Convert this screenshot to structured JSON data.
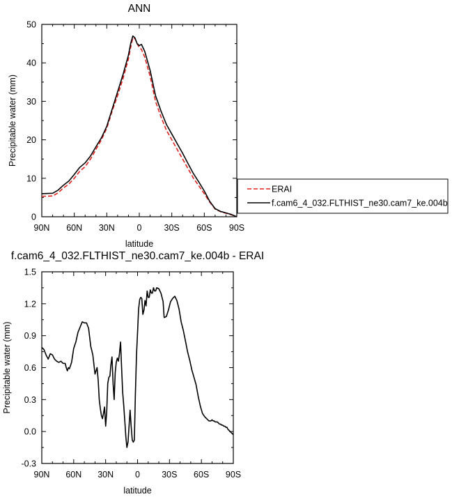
{
  "chart_data": [
    {
      "type": "line",
      "title": "ANN",
      "xlabel": "latitude",
      "ylabel": "Precipitable water (mm)",
      "xlim": [
        90,
        -90
      ],
      "ylim": [
        0,
        50
      ],
      "x_ticks": [
        90,
        60,
        30,
        0,
        -30,
        -60,
        -90
      ],
      "x_tick_labels": [
        "90N",
        "60N",
        "30N",
        "0",
        "30S",
        "60S",
        "90S"
      ],
      "y_ticks": [
        0,
        10,
        20,
        30,
        40,
        50
      ],
      "y_tick_labels": [
        "0",
        "10",
        "20",
        "30",
        "40",
        "50"
      ],
      "grid": false,
      "legend": {
        "placement": "right",
        "entries": [
          "ERAI",
          "f.cam6_4_032.FLTHIST_ne30.cam7_ke.004b"
        ]
      },
      "series": [
        {
          "name": "ERAI",
          "color": "#e0201b",
          "dash": "dashed",
          "x": [
            90,
            80,
            75,
            70,
            65,
            60,
            55,
            50,
            45,
            40,
            35,
            30,
            25,
            20,
            15,
            10,
            8,
            6,
            4,
            2,
            0,
            -2,
            -5,
            -10,
            -15,
            -20,
            -25,
            -30,
            -35,
            -40,
            -45,
            -50,
            -55,
            -60,
            -65,
            -70,
            -75,
            -80,
            -85,
            -90
          ],
          "y": [
            5.3,
            5.4,
            6.2,
            7.5,
            8.5,
            10.0,
            11.8,
            13.0,
            15.0,
            17.5,
            20.0,
            23.0,
            27.5,
            31.5,
            36.0,
            41.0,
            44.0,
            46.5,
            46.3,
            45.0,
            44.0,
            43.5,
            41.5,
            36.5,
            30.0,
            26.0,
            22.5,
            20.0,
            17.5,
            15.0,
            12.5,
            10.0,
            8.0,
            6.0,
            3.8,
            2.0,
            1.3,
            0.9,
            0.5,
            0.0
          ]
        },
        {
          "name": "f.cam6_4_032.FLTHIST_ne30.cam7_ke.004b",
          "color": "#000000",
          "dash": "solid",
          "x": [
            90,
            80,
            75,
            70,
            65,
            60,
            55,
            50,
            45,
            40,
            35,
            30,
            25,
            20,
            15,
            10,
            8,
            6,
            4,
            2,
            0,
            -2,
            -5,
            -10,
            -15,
            -20,
            -25,
            -30,
            -35,
            -40,
            -45,
            -50,
            -55,
            -60,
            -65,
            -70,
            -75,
            -80,
            -85,
            -90
          ],
          "y": [
            6.0,
            6.1,
            6.9,
            8.2,
            9.3,
            11.0,
            12.8,
            14.0,
            15.8,
            18.2,
            20.5,
            23.5,
            28.0,
            32.5,
            37.0,
            42.0,
            45.0,
            47.0,
            46.5,
            45.0,
            44.5,
            44.8,
            43.0,
            38.0,
            31.5,
            27.5,
            24.0,
            21.5,
            19.0,
            16.5,
            13.8,
            11.2,
            9.0,
            6.7,
            4.0,
            2.1,
            1.4,
            1.0,
            0.6,
            0.0
          ]
        }
      ]
    },
    {
      "type": "line",
      "title": "f.cam6_4_032.FLTHIST_ne30.cam7_ke.004b - ERAI",
      "xlabel": "latitude",
      "ylabel": "Precipitable water (mm)",
      "xlim": [
        90,
        -90
      ],
      "ylim": [
        -0.3,
        1.5
      ],
      "x_ticks": [
        90,
        60,
        30,
        0,
        -30,
        -60,
        -90
      ],
      "x_tick_labels": [
        "90N",
        "60N",
        "30N",
        "0",
        "30S",
        "60S",
        "90S"
      ],
      "y_ticks": [
        -0.3,
        0.0,
        0.3,
        0.6,
        0.9,
        1.2,
        1.5
      ],
      "y_tick_labels": [
        "-0.3",
        "0.0",
        "0.3",
        "0.6",
        "0.9",
        "1.2",
        "1.5"
      ],
      "grid": false,
      "series": [
        {
          "color": "#000000",
          "dash": "solid",
          "x": [
            90,
            88,
            86,
            84,
            82,
            80,
            78,
            76,
            74,
            72,
            70,
            68,
            67,
            66,
            65,
            64,
            63,
            62,
            60,
            58,
            56,
            54,
            52,
            50,
            48,
            46,
            44,
            42,
            40,
            38,
            37,
            36,
            35,
            34,
            33,
            32,
            31,
            30,
            29,
            28,
            27,
            26,
            25,
            24,
            23,
            22,
            21,
            20,
            19,
            18,
            17,
            16,
            15,
            14,
            13,
            12,
            11,
            10,
            9,
            8,
            7,
            6,
            5,
            4,
            3,
            2,
            1,
            0,
            -1,
            -2,
            -3,
            -4,
            -5,
            -6,
            -7,
            -8,
            -9,
            -10,
            -11,
            -12,
            -13,
            -14,
            -15,
            -16,
            -17,
            -18,
            -20,
            -22,
            -24,
            -25,
            -27,
            -29,
            -31,
            -33,
            -35,
            -37,
            -39,
            -41,
            -43,
            -45,
            -47,
            -49,
            -51,
            -53,
            -55,
            -57,
            -59,
            -61,
            -63,
            -65,
            -67,
            -69,
            -70,
            -71,
            -72,
            -73,
            -74,
            -75,
            -76,
            -77,
            -78,
            -79,
            -80,
            -81,
            -82,
            -83,
            -84,
            -85,
            -86,
            -87,
            -88,
            -89,
            -90
          ],
          "y": [
            0.79,
            0.77,
            0.72,
            0.68,
            0.73,
            0.72,
            0.68,
            0.66,
            0.65,
            0.66,
            0.64,
            0.64,
            0.6,
            0.57,
            0.6,
            0.59,
            0.62,
            0.65,
            0.78,
            0.84,
            0.93,
            0.98,
            1.03,
            1.02,
            1.02,
            0.97,
            0.8,
            0.72,
            0.54,
            0.6,
            0.48,
            0.3,
            0.22,
            0.15,
            0.12,
            0.17,
            0.23,
            0.05,
            0.18,
            0.45,
            0.51,
            0.52,
            0.63,
            0.7,
            0.45,
            0.3,
            0.55,
            0.65,
            0.69,
            0.66,
            0.73,
            0.84,
            0.6,
            0.37,
            0.25,
            0.1,
            -0.05,
            -0.15,
            -0.1,
            0.05,
            0.2,
            0.05,
            -0.08,
            -0.1,
            -0.08,
            0.35,
            0.72,
            0.93,
            1.15,
            1.24,
            1.26,
            1.25,
            1.1,
            1.14,
            1.23,
            1.18,
            1.32,
            1.26,
            1.26,
            1.33,
            1.3,
            1.3,
            1.35,
            1.32,
            1.32,
            1.35,
            1.34,
            1.3,
            1.22,
            1.07,
            1.08,
            1.14,
            1.22,
            1.25,
            1.27,
            1.23,
            1.15,
            1.03,
            0.95,
            0.85,
            0.75,
            0.67,
            0.58,
            0.51,
            0.44,
            0.33,
            0.24,
            0.17,
            0.14,
            0.12,
            0.1,
            0.1,
            0.11,
            0.1,
            0.1,
            0.09,
            0.09,
            0.09,
            0.08,
            0.07,
            0.07,
            0.06,
            0.06,
            0.05,
            0.05,
            0.04,
            0.04,
            0.02,
            0.01,
            0.0,
            -0.01,
            -0.02,
            -0.03
          ]
        }
      ]
    }
  ]
}
